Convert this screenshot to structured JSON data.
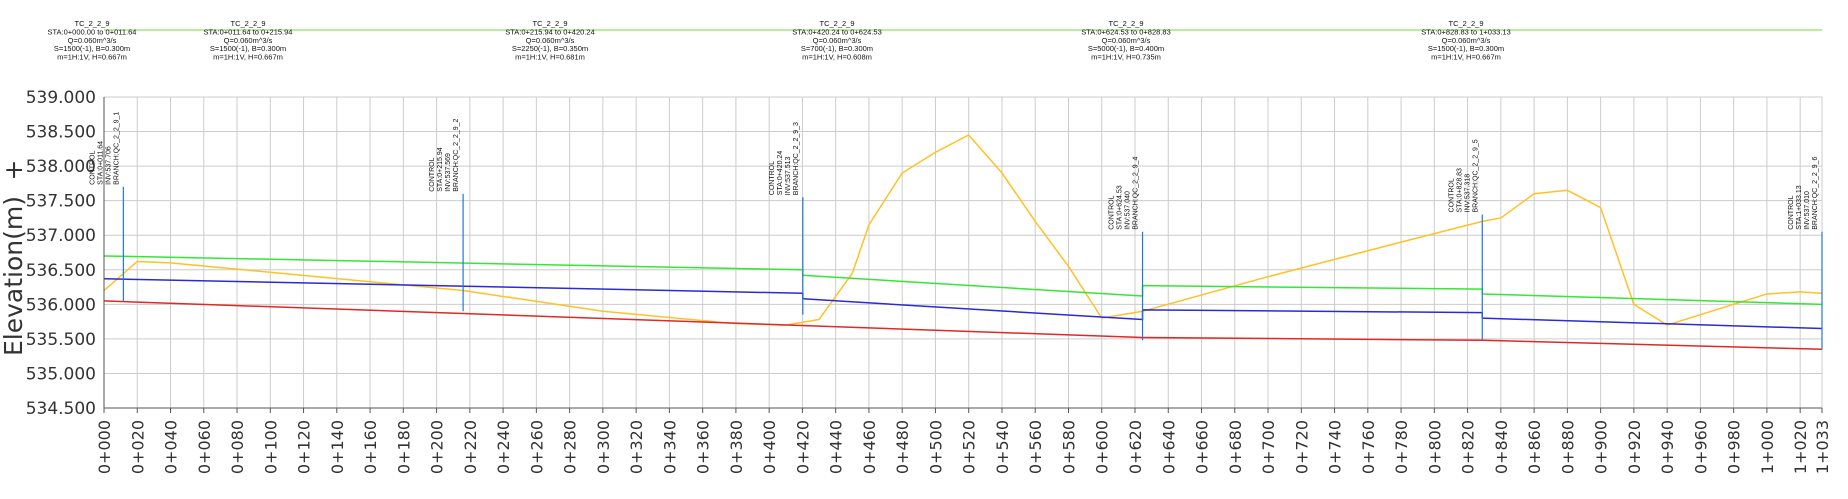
{
  "segments": [
    {
      "lines": [
        "TC_2_2_9",
        "STA:0+000.00  to  0+011.64",
        "Q=0.060m^3/s",
        "S=1500(-1),  B=0.300m",
        "m=1H:1V,  H=0.667m"
      ],
      "sta_start": 0,
      "sta_end": 11.64
    },
    {
      "lines": [
        "TC_2_2_9",
        "STA:0+011.64  to  0+215.94",
        "Q=0.060m^3/s",
        "S=1500(-1),  B=0.300m",
        "m=1H:1V,  H=0.667m"
      ],
      "sta_start": 11.64,
      "sta_end": 215.94
    },
    {
      "lines": [
        "TC_2_2_9",
        "STA:0+215.94  to  0+420.24",
        "Q=0.060m^3/s",
        "S=2250(-1),  B=0.350m",
        "m=1H:1V,  H=0.681m"
      ],
      "sta_start": 215.94,
      "sta_end": 420.24
    },
    {
      "lines": [
        "TC_2_2_9",
        "STA:0+420.24  to  0+624.53",
        "Q=0.060m^3/s",
        "S=700(-1),  B=0.300m",
        "m=1H:1V,  H=0.608m"
      ],
      "sta_start": 420.24,
      "sta_end": 624.53
    },
    {
      "lines": [
        "TC_2_2_9",
        "STA:0+624.53  to  0+828.83",
        "Q=0.060m^3/s",
        "S=5000(-1),  B=0.400m",
        "m=1H:1V,  H=0.735m"
      ],
      "sta_start": 624.53,
      "sta_end": 828.83
    },
    {
      "lines": [
        "TC_2_2_9",
        "STA:0+828.83  to  1+033.13",
        "Q=0.060m^3/s",
        "S=1500(-1),  B=0.300m",
        "m=1H:1V,  H=0.667m"
      ],
      "sta_start": 828.83,
      "sta_end": 1033.13
    }
  ],
  "controls": [
    {
      "sta": 11.64,
      "top": 537.7,
      "lines": [
        "CONTROL",
        "STA:0+011.64",
        "INV:537.706",
        "BRANCH:QC_2_2_9_1"
      ]
    },
    {
      "sta": 215.94,
      "top": 537.6,
      "lines": [
        "CONTROL",
        "STA:0+215.94",
        "INV:537.569",
        "BRANCH:QC_2_2_9_2"
      ]
    },
    {
      "sta": 420.24,
      "top": 537.55,
      "lines": [
        "CONTROL",
        "STA:0+420.24",
        "INV:537.513",
        "BRANCH:QC_2_2_9_3"
      ]
    },
    {
      "sta": 624.53,
      "top": 537.05,
      "lines": [
        "CONTROL",
        "STA:0+624.53",
        "INV:537.040",
        "BRANCH:QC_2_2_9_4"
      ]
    },
    {
      "sta": 828.83,
      "top": 537.3,
      "lines": [
        "CONTROL",
        "STA:0+828.83",
        "INV:537.318",
        "BRANCH:QC_2_2_9_5"
      ]
    },
    {
      "sta": 1033.13,
      "top": 537.05,
      "lines": [
        "CONTROL",
        "STA:1+033.13",
        "INV:537.010",
        "BRANCH:QC_2_2_9_6"
      ]
    }
  ],
  "chart_data": {
    "type": "line",
    "ylabel": "Elevation(m)",
    "ylabel_prefix": "+",
    "ylim": [
      534.5,
      539.0
    ],
    "xlim": [
      0,
      1033.13
    ],
    "yticks": [
      "539.000",
      "538.500",
      "538.000",
      "537.500",
      "537.000",
      "536.500",
      "536.000",
      "535.500",
      "535.000",
      "534.500"
    ],
    "ytick_values": [
      539.0,
      538.5,
      538.0,
      537.5,
      537.0,
      536.5,
      536.0,
      535.5,
      535.0,
      534.5
    ],
    "xticks": [
      "0+000",
      "0+020",
      "0+040",
      "0+060",
      "0+080",
      "0+100",
      "0+120",
      "0+140",
      "0+160",
      "0+180",
      "0+200",
      "0+220",
      "0+240",
      "0+260",
      "0+280",
      "0+300",
      "0+320",
      "0+340",
      "0+360",
      "0+380",
      "0+400",
      "0+420",
      "0+440",
      "0+460",
      "0+480",
      "0+500",
      "0+520",
      "0+540",
      "0+560",
      "0+580",
      "0+600",
      "0+620",
      "0+640",
      "0+660",
      "0+680",
      "0+700",
      "0+720",
      "0+740",
      "0+760",
      "0+780",
      "0+800",
      "0+820",
      "0+840",
      "0+860",
      "0+880",
      "0+900",
      "0+920",
      "0+940",
      "0+960",
      "0+980",
      "1+000",
      "1+020",
      "1+033"
    ],
    "xtick_values": [
      0,
      20,
      40,
      60,
      80,
      100,
      120,
      140,
      160,
      180,
      200,
      220,
      240,
      260,
      280,
      300,
      320,
      340,
      360,
      380,
      400,
      420,
      440,
      460,
      480,
      500,
      520,
      540,
      560,
      580,
      600,
      620,
      640,
      660,
      680,
      700,
      720,
      740,
      760,
      780,
      800,
      820,
      840,
      860,
      880,
      900,
      920,
      940,
      960,
      980,
      1000,
      1020,
      1033.13
    ],
    "grid": true,
    "series": [
      {
        "color": "#ffc125",
        "x": [
          0,
          20,
          40,
          215.94,
          300,
          380,
          410,
          430,
          450,
          460,
          480,
          500,
          520,
          540,
          560,
          580,
          600,
          624.53,
          700,
          780,
          828.83,
          840,
          860,
          880,
          900,
          920,
          940,
          980,
          1000,
          1020,
          1033.13
        ],
        "y": [
          536.2,
          536.62,
          536.6,
          536.2,
          535.9,
          535.72,
          535.7,
          535.78,
          536.45,
          537.15,
          537.9,
          538.2,
          538.45,
          537.9,
          537.2,
          536.55,
          535.8,
          535.9,
          536.4,
          536.9,
          537.2,
          537.25,
          537.6,
          537.65,
          537.4,
          536.0,
          535.7,
          536.0,
          536.15,
          536.18,
          536.16
        ]
      },
      {
        "color": "#33e833",
        "x": [
          0,
          420.24,
          420.24,
          624.53,
          624.53,
          828.83,
          828.83,
          1033.13
        ],
        "y": [
          536.7,
          536.5,
          536.42,
          536.12,
          536.27,
          536.22,
          536.15,
          536.0
        ]
      },
      {
        "color": "#2a2ad8",
        "x": [
          0,
          420.24,
          420.24,
          624.53,
          624.53,
          828.83,
          828.83,
          1033.13
        ],
        "y": [
          536.37,
          536.16,
          536.08,
          535.78,
          535.92,
          535.88,
          535.8,
          535.65
        ]
      },
      {
        "color": "#e02828",
        "x": [
          0,
          624.53,
          828.83,
          1033.13
        ],
        "y": [
          536.05,
          535.52,
          535.48,
          535.35
        ]
      },
      {
        "color": "#8ee85a",
        "x": [
          0,
          1033.13
        ],
        "y": [
          539.0,
          539.0
        ],
        "role": "top-reference"
      }
    ]
  },
  "colors": {
    "grid": "#cccccc",
    "axis": "#555555",
    "control": "#1f77d4"
  }
}
